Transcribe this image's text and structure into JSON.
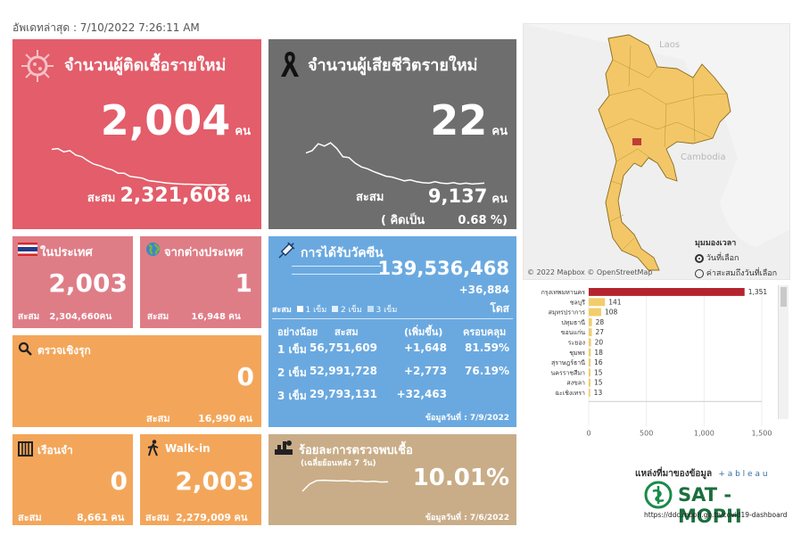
{
  "updated": "อัพเดทล่าสุด : 7/10/2022 7:26:11 AM",
  "colors": {
    "cases": "#e35d6a",
    "deaths": "#6e6e6e",
    "domestic": "#df7d87",
    "vaccine": "#6aa9e0",
    "orange": "#f3a65a",
    "positivity": "#c9ad88",
    "bar_top": "#b5242e",
    "bar": "#f2cd6a"
  },
  "cases": {
    "title": "จำนวนผู้ติดเชื้อรายใหม่",
    "value": "2,004",
    "unit": "คน",
    "cum_label": "สะสม",
    "cum_value": "2,321,608",
    "cum_unit": "คน",
    "trend": [
      0.88,
      0.9,
      0.82,
      0.85,
      0.74,
      0.7,
      0.6,
      0.52,
      0.48,
      0.42,
      0.38,
      0.3,
      0.3,
      0.22,
      0.2,
      0.18,
      0.12,
      0.1,
      0.08,
      0.06,
      0.05,
      0.04,
      0.03,
      0.03,
      0.02,
      0.02,
      0.01,
      0.02,
      0.01,
      0.02
    ]
  },
  "deaths": {
    "title": "จำนวนผู้เสียชีวิตรายใหม่",
    "value": "22",
    "unit": "คน",
    "cum_label": "สะสม",
    "cum_value": "9,137",
    "cum_unit": "คน",
    "pct_label": "( คิดเป็น",
    "pct_value": "0.68 %)",
    "trend": [
      0.7,
      0.75,
      0.9,
      0.85,
      0.92,
      0.8,
      0.62,
      0.6,
      0.48,
      0.4,
      0.36,
      0.3,
      0.25,
      0.2,
      0.18,
      0.14,
      0.1,
      0.12,
      0.08,
      0.06,
      0.05,
      0.08,
      0.05,
      0.04,
      0.06,
      0.03,
      0.05,
      0.03,
      0.04,
      0.05
    ]
  },
  "domestic": {
    "title": "ในประเทศ",
    "value": "2,003",
    "cum_label": "สะสม",
    "cum_value": "2,304,660",
    "cum_unit": "คน"
  },
  "abroad": {
    "title": "จากต่างประเทศ",
    "value": "1",
    "cum_label": "สะสม",
    "cum_value": "16,948",
    "cum_unit": "คน"
  },
  "active": {
    "title": "ตรวจเชิงรุก",
    "value": "0",
    "cum_label": "สะสม",
    "cum_value": "16,990",
    "cum_unit": "คน"
  },
  "prison": {
    "title": "เรือนจำ",
    "value": "0",
    "cum_label": "สะสม",
    "cum_value": "8,661",
    "cum_unit": "คน"
  },
  "walkin": {
    "title": "Walk-in",
    "value": "2,003",
    "cum_label": "สะสม",
    "cum_value": "2,279,009",
    "cum_unit": "คน"
  },
  "vaccine": {
    "title": "การได้รับวัคซีน",
    "total": "139,536,468",
    "delta": "+36,884",
    "dose_unit": "โดส",
    "legend_label": "สะสม",
    "legend": [
      "1 เข็ม",
      "2 เข็ม",
      "3 เข็ม"
    ],
    "headers": [
      "อย่างน้อย",
      "สะสม",
      "(เพิ่มขึ้น)",
      "ครอบคลุม"
    ],
    "rows": [
      {
        "dose": "1 เข็ม",
        "cum": "56,751,609",
        "inc": "+1,648",
        "cov": "81.59%"
      },
      {
        "dose": "2 เข็ม",
        "cum": "52,991,728",
        "inc": "+2,773",
        "cov": "76.19%"
      },
      {
        "dose": "3 เข็ม",
        "cum": "29,793,131",
        "inc": "+32,463",
        "cov": ""
      }
    ],
    "date": "ข้อมูลวันที่ : 7/9/2022"
  },
  "positivity": {
    "title": "ร้อยละการตรวจพบเชื้อ",
    "subtitle": "(เฉลี่ยย้อนหลัง 7 วัน)",
    "value": "10.01%",
    "date": "ข้อมูลวันที่ : 7/6/2022",
    "trend": [
      0.1,
      0.5,
      0.7,
      0.72,
      0.7,
      0.68,
      0.7,
      0.66,
      0.68,
      0.64,
      0.66,
      0.62,
      0.63
    ]
  },
  "map": {
    "labels": [
      "Laos",
      "Cambodia"
    ],
    "copyright": "© 2022 Mapbox © OpenStreetMap",
    "legend_title": "มุมมองเวลา",
    "options": [
      {
        "label": "วันที่เลือก",
        "selected": true
      },
      {
        "label": "ค่าสะสมถึงวันที่เลือก",
        "selected": false
      }
    ]
  },
  "chart_data": {
    "type": "bar",
    "orientation": "horizontal",
    "categories": [
      "กรุงเทพมหานคร",
      "ชลบุรี",
      "สมุทรปราการ",
      "ปทุมธานี",
      "ขอนแก่น",
      "ระยอง",
      "ชุมพร",
      "สุราษฎร์ธานี",
      "นครราชสีมา",
      "สงขลา",
      "ฉะเชิงเทรา"
    ],
    "values": [
      1351,
      141,
      108,
      28,
      27,
      20,
      18,
      16,
      15,
      15,
      13
    ],
    "data_labels": [
      "1,351",
      "141",
      "108",
      "28",
      "27",
      "20",
      "18",
      "16",
      "15",
      "15",
      "13"
    ],
    "ticks": [
      "0",
      "500",
      "1,000",
      "1,500"
    ],
    "xlim": [
      0,
      1500
    ]
  },
  "sources": {
    "label": "แหล่งที่มาของข้อมูล",
    "tableau": "+ a b l e a u",
    "brand": "SAT - MOPH",
    "url": "https://ddc.moph.go.th/covid19-dashboard"
  }
}
